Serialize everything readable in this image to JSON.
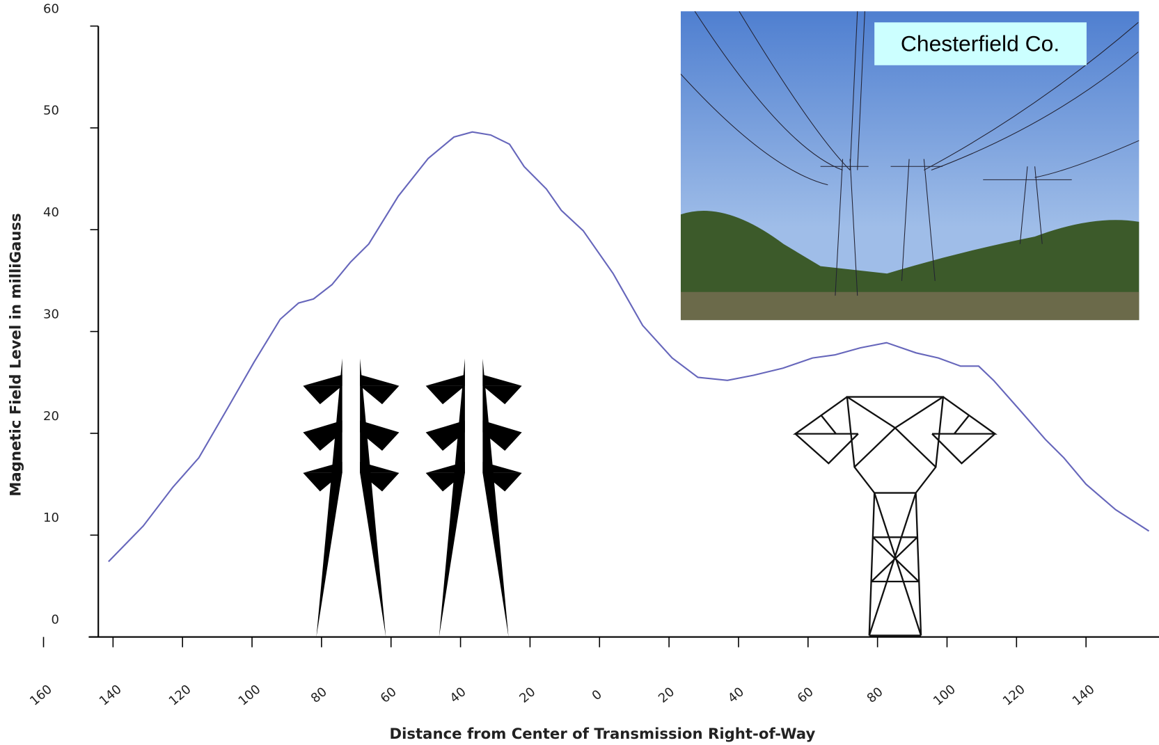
{
  "chart_data": {
    "type": "line",
    "x_label": "Distance from Center of Transmission Right-of-Way",
    "y_label": "Magnetic Field Level in milliGauss",
    "annotations": [
      "Chesterfield Co."
    ],
    "x": [
      -141.3,
      -131.3,
      -122.8,
      -115.3,
      -106.8,
      -99.4,
      -91.9,
      -86.6,
      -82.3,
      -77.0,
      -71.7,
      -66.4,
      -57.9,
      -49.3,
      -41.9,
      -36.6,
      -31.3,
      -25.9,
      -21.7,
      -15.3,
      -11.0,
      -4.7,
      3.9,
      12.4,
      20.9,
      28.3,
      36.8,
      44.3,
      52.8,
      61.3,
      67.7,
      75.1,
      82.6,
      91.1,
      97.5,
      103.9,
      109.1,
      113.4,
      120.9,
      128.3,
      133.6,
      140.0,
      148.5,
      158.1
    ],
    "series": [
      {
        "color": "#6666bb",
        "values": [
          7.4,
          10.9,
          14.7,
          17.6,
          22.6,
          27.0,
          31.2,
          32.8,
          33.2,
          34.6,
          36.8,
          38.6,
          43.3,
          47.0,
          49.1,
          49.6,
          49.3,
          48.4,
          46.2,
          44.0,
          41.9,
          39.9,
          35.7,
          30.6,
          27.4,
          25.5,
          25.2,
          25.7,
          26.4,
          27.4,
          27.7,
          28.4,
          28.9,
          27.9,
          27.4,
          26.6,
          26.6,
          25.2,
          22.3,
          19.4,
          17.6,
          15.0,
          12.5,
          10.4
        ]
      }
    ],
    "xlim": [
      -147,
      161
    ],
    "xticks": [
      {
        "value": -160,
        "label": "160"
      },
      {
        "value": -140,
        "label": "140"
      },
      {
        "value": -120,
        "label": "120"
      },
      {
        "value": -100,
        "label": "100"
      },
      {
        "value": -80,
        "label": "80"
      },
      {
        "value": -60,
        "label": "60"
      },
      {
        "value": -40,
        "label": "40"
      },
      {
        "value": -20,
        "label": "20"
      },
      0,
      20,
      40,
      60,
      80,
      100,
      120,
      140
    ],
    "ylim": [
      0,
      60
    ],
    "yticks": [
      0,
      10,
      20,
      30,
      40,
      50,
      60
    ]
  }
}
